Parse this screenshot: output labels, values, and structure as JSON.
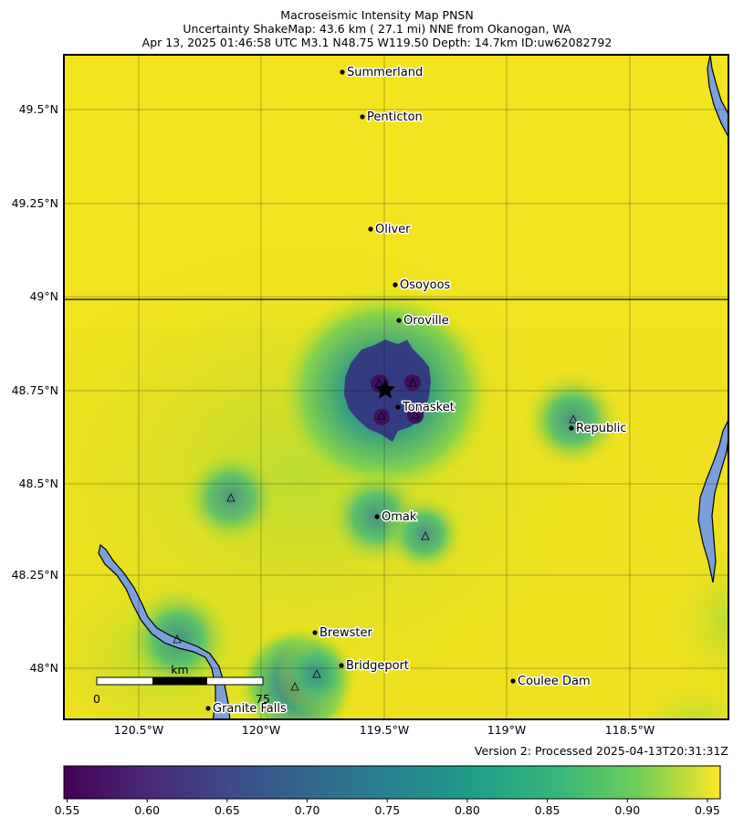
{
  "title": {
    "line1": "Macroseismic Intensity Map PNSN",
    "line2": "Uncertainty ShakeMap: 43.6 km (  27.1 mi) NNE from Okanogan, WA",
    "line3": "Apr 13, 2025 01:46:58 UTC M3.1 N48.75 W119.50 Depth: 14.7km ID:uw62082792"
  },
  "map": {
    "lat_ticks": [
      "49.5°N",
      "49.25°N",
      "49°N",
      "48.75°N",
      "48.5°N",
      "48.25°N",
      "48°N"
    ],
    "lon_ticks": [
      "120.5°W",
      "120°W",
      "119.5°W",
      "119°W",
      "118.5°W"
    ],
    "cities": [
      "Summerland",
      "Penticton",
      "Oliver",
      "Osoyoos",
      "Oroville",
      "Tonasket",
      "Republic",
      "Omak",
      "Brewster",
      "Bridgeport",
      "Coulee Dam",
      "Granite Falls"
    ],
    "epicenter_icon": "star-icon",
    "station_icon": "triangle-icon",
    "colors": {
      "background_high": "#f1e31e",
      "water": "#7b9fd9",
      "low": "#440154",
      "mid": "#21918c"
    }
  },
  "scale_bar": {
    "unit": "km",
    "start_label": "0",
    "end_label": "75"
  },
  "version": "Version 2: Processed 2025-04-13T20:31:31Z",
  "colorbar": {
    "ticks": [
      "0.55",
      "0.60",
      "0.65",
      "0.70",
      "0.75",
      "0.80",
      "0.85",
      "0.90",
      "0.95"
    ],
    "min": 0.548,
    "max": 0.958,
    "colormap": "viridis"
  }
}
